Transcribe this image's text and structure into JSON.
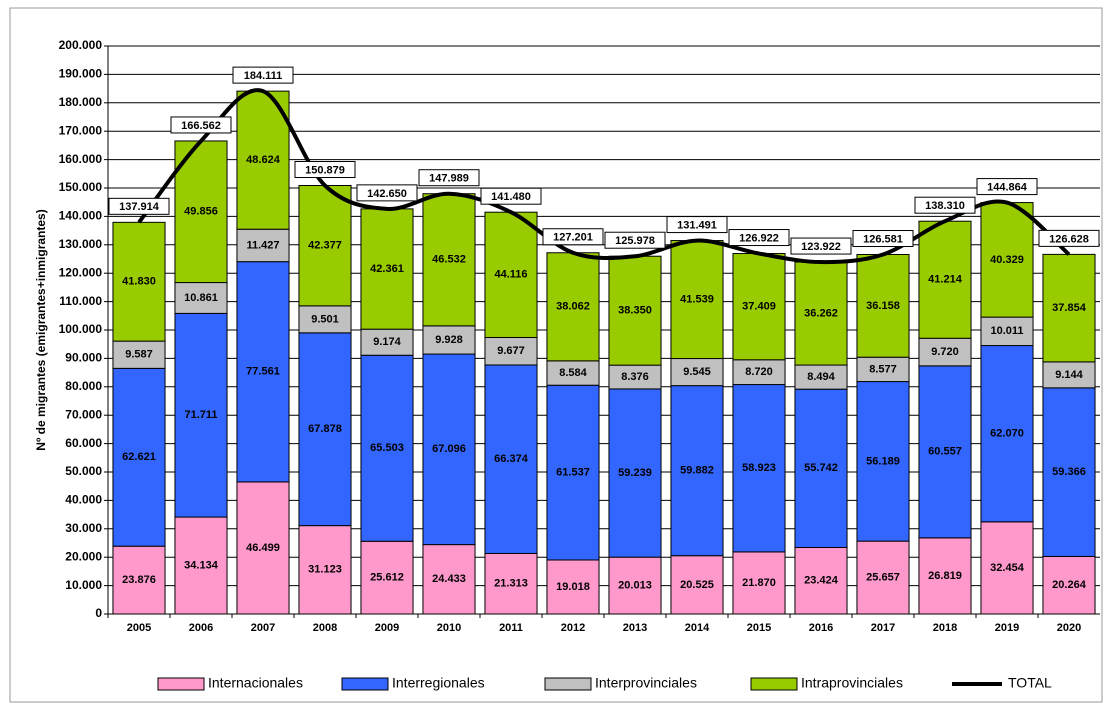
{
  "chart_data": {
    "type": "bar",
    "stacked": true,
    "y_label": "Nº de migrantes (emigrantes+inmigrantes)",
    "categories": [
      "2005",
      "2006",
      "2007",
      "2008",
      "2009",
      "2010",
      "2011",
      "2012",
      "2013",
      "2014",
      "2015",
      "2016",
      "2017",
      "2018",
      "2019",
      "2020"
    ],
    "ylim": [
      0,
      200000
    ],
    "yticks": [
      0,
      {
        "value": 10000,
        "label": "10.000"
      },
      {
        "value": 20000,
        "label": "20.000"
      },
      {
        "value": 30000,
        "label": "30.000"
      },
      {
        "value": 40000,
        "label": "40.000"
      },
      {
        "value": 50000,
        "label": "50.000"
      },
      {
        "value": 60000,
        "label": "60.000"
      },
      {
        "value": 70000,
        "label": "70.000"
      },
      {
        "value": 80000,
        "label": "80.000"
      },
      {
        "value": 90000,
        "label": "90.000"
      },
      {
        "value": 100000,
        "label": "100.000"
      },
      {
        "value": 110000,
        "label": "110.000"
      },
      {
        "value": 120000,
        "label": "120.000"
      },
      {
        "value": 130000,
        "label": "130.000"
      },
      {
        "value": 140000,
        "label": "140.000"
      },
      {
        "value": 150000,
        "label": "150.000"
      },
      {
        "value": 160000,
        "label": "160.000"
      },
      {
        "value": 170000,
        "label": "170.000"
      },
      {
        "value": 180000,
        "label": "180.000"
      },
      {
        "value": 190000,
        "label": "190.000"
      },
      {
        "value": 200000,
        "label": "200.000"
      }
    ],
    "legend": "bottom",
    "series": [
      {
        "name": "Internacionales",
        "color": "#ff99cc",
        "values": [
          23876,
          34134,
          46499,
          31123,
          25612,
          24433,
          21313,
          19018,
          20013,
          20525,
          21870,
          23424,
          25657,
          26819,
          32454,
          20264
        ],
        "value_labels": [
          "23.876",
          "34.134",
          "46.499",
          "31.123",
          "25.612",
          "24.433",
          "21.313",
          "19.018",
          "20.013",
          "20.525",
          "21.870",
          "23.424",
          "25.657",
          "26.819",
          "32.454",
          "20.264"
        ]
      },
      {
        "name": "Interregionales",
        "color": "#3366ff",
        "values": [
          62621,
          71711,
          77561,
          67878,
          65503,
          67096,
          66374,
          61537,
          59239,
          59882,
          58923,
          55742,
          56189,
          60557,
          62070,
          59366
        ],
        "value_labels": [
          "62.621",
          "71.711",
          "77.561",
          "67.878",
          "65.503",
          "67.096",
          "66.374",
          "61.537",
          "59.239",
          "59.882",
          "58.923",
          "55.742",
          "56.189",
          "60.557",
          "62.070",
          "59.366"
        ]
      },
      {
        "name": "Interprovinciales",
        "color": "#c0c0c0",
        "values": [
          9587,
          10861,
          11427,
          9501,
          9174,
          9928,
          9677,
          8584,
          8376,
          9545,
          8720,
          8494,
          8577,
          9720,
          10011,
          9144
        ],
        "value_labels": [
          "9.587",
          "10.861",
          "11.427",
          "9.501",
          "9.174",
          "9.928",
          "9.677",
          "8.584",
          "8.376",
          "9.545",
          "8.720",
          "8.494",
          "8.577",
          "9.720",
          "10.011",
          "9.144"
        ]
      },
      {
        "name": "Intraprovinciales",
        "color": "#99cc00",
        "values": [
          41830,
          49856,
          48624,
          42377,
          42361,
          46532,
          44116,
          38062,
          38350,
          41539,
          37409,
          36262,
          36158,
          41214,
          40329,
          37854
        ],
        "value_labels": [
          "41.830",
          "49.856",
          "48.624",
          "42.377",
          "42.361",
          "46.532",
          "44.116",
          "38.062",
          "38.350",
          "41.539",
          "37.409",
          "36.262",
          "36.158",
          "41.214",
          "40.329",
          "37.854"
        ]
      },
      {
        "name": "TOTAL",
        "color": "#000000",
        "type": "line",
        "values": [
          137914,
          166562,
          184111,
          150879,
          142650,
          147989,
          141480,
          127201,
          125978,
          131491,
          126922,
          123922,
          126581,
          138310,
          144864,
          126628
        ],
        "value_labels": [
          "137.914",
          "166.562",
          "184.111",
          "150.879",
          "142.650",
          "147.989",
          "141.480",
          "127.201",
          "125.978",
          "131.491",
          "126.922",
          "123.922",
          "126.581",
          "138.310",
          "144.864",
          "126.628"
        ]
      }
    ]
  }
}
